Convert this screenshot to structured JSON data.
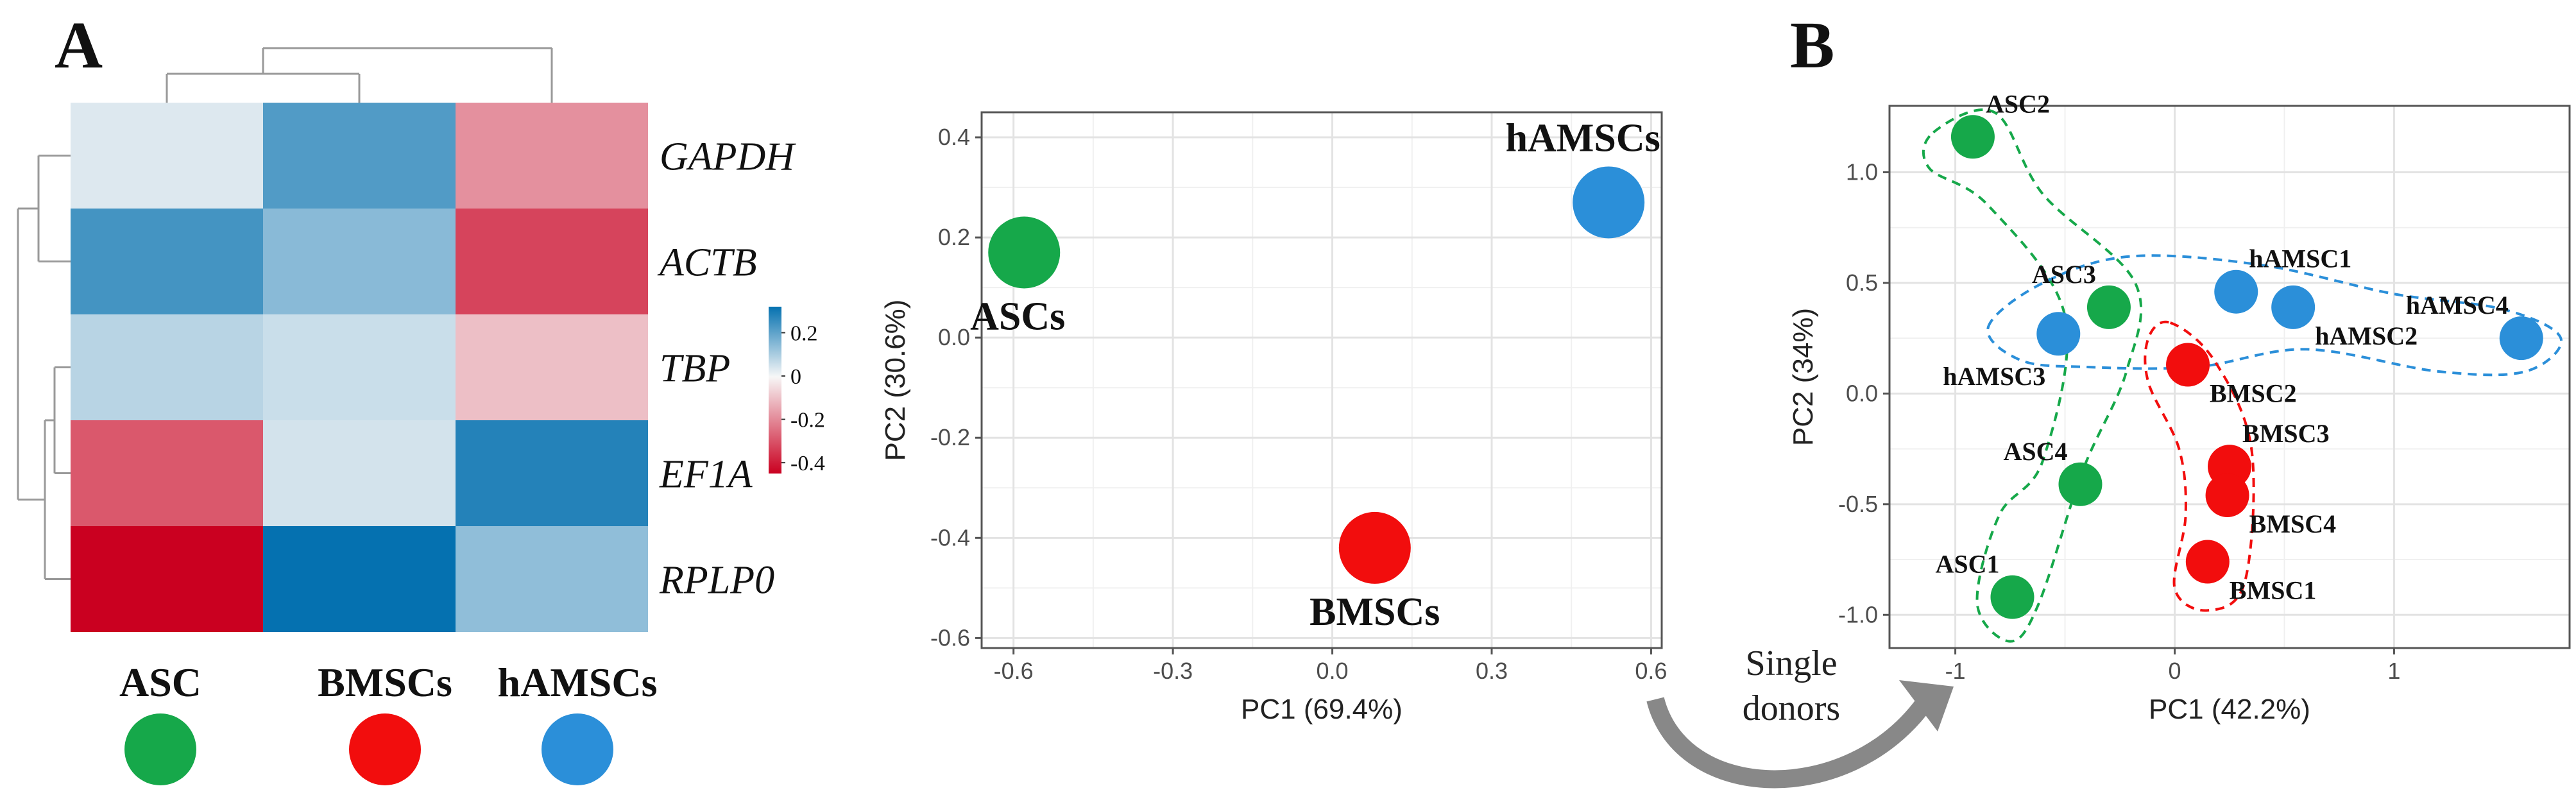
{
  "panel_labels": {
    "a": "A",
    "b": "B"
  },
  "transition": {
    "line1": "Single",
    "line2": "donors"
  },
  "legend_groups": [
    {
      "label": "ASC",
      "color": "#16a84a"
    },
    {
      "label": "BMSCs",
      "color": "#f20d0d"
    },
    {
      "label": "hAMSCs",
      "color": "#2b8fd9"
    }
  ],
  "colors": {
    "asc": "#16a84a",
    "bmsc": "#f20d0d",
    "hamsc": "#2b8fd9",
    "panel_bg": "#ffffff",
    "grid": "#e6e6e6",
    "scale_high": "#0571b0",
    "scale_mid": "#f7f7f7",
    "scale_low": "#ca0020"
  },
  "chart_data": [
    {
      "type": "heatmap",
      "columns": [
        "ASC",
        "BMSCs",
        "hAMSCs"
      ],
      "rows": [
        "GAPDH",
        "ACTB",
        "TBP",
        "EF1A",
        "RPLP0"
      ],
      "values": [
        [
          0.02,
          0.2,
          -0.15
        ],
        [
          0.22,
          0.12,
          -0.3
        ],
        [
          0.06,
          0.04,
          -0.07
        ],
        [
          -0.26,
          0.03,
          0.27
        ],
        [
          -0.45,
          0.32,
          0.11
        ]
      ],
      "colorbar": {
        "ticks": [
          0.2,
          0,
          -0.2,
          -0.4
        ],
        "tick_labels": [
          "0.2",
          "0",
          "-0.2",
          "-0.4"
        ],
        "range": [
          -0.45,
          0.32
        ]
      }
    },
    {
      "type": "scatter",
      "xlabel": "PC1 (69.4%)",
      "ylabel": "PC2 (30.6%)",
      "xlim": [
        -0.66,
        0.62
      ],
      "ylim": [
        -0.62,
        0.45
      ],
      "xticks": [
        -0.6,
        -0.3,
        0.0,
        0.3,
        0.6
      ],
      "xtick_labels": [
        "-0.6",
        "-0.3",
        "0.0",
        "0.3",
        "0.6"
      ],
      "yticks": [
        -0.6,
        -0.4,
        -0.2,
        0.0,
        0.2,
        0.4
      ],
      "ytick_labels": [
        "-0.6",
        "-0.4",
        "-0.2",
        "0.0",
        "0.2",
        "0.4"
      ],
      "grid": true,
      "points": [
        {
          "label": "ASCs",
          "x": -0.58,
          "y": 0.17,
          "group": "asc",
          "label_pos": "below"
        },
        {
          "label": "hAMSCs",
          "x": 0.52,
          "y": 0.27,
          "group": "hamsc",
          "label_pos": "above-left"
        },
        {
          "label": "BMSCs",
          "x": 0.08,
          "y": -0.42,
          "group": "bmsc",
          "label_pos": "below"
        }
      ]
    },
    {
      "type": "scatter",
      "xlabel": "PC1 (42.2%)",
      "ylabel": "PC2 (34%)",
      "xlim": [
        -1.3,
        1.8
      ],
      "ylim": [
        -1.15,
        1.3
      ],
      "xticks": [
        -1,
        0,
        1
      ],
      "xtick_labels": [
        "-1",
        "0",
        "1"
      ],
      "yticks": [
        -1.0,
        -0.5,
        0.0,
        0.5,
        1.0
      ],
      "ytick_labels": [
        "-1.0",
        "-0.5",
        "0.0",
        "0.5",
        "1.0"
      ],
      "grid": true,
      "points": [
        {
          "label": "ASC2",
          "x": -0.92,
          "y": 1.16,
          "group": "asc",
          "label_pos": "ne"
        },
        {
          "label": "ASC3",
          "x": -0.3,
          "y": 0.39,
          "group": "asc",
          "label_pos": "nw"
        },
        {
          "label": "ASC4",
          "x": -0.43,
          "y": -0.41,
          "group": "asc",
          "label_pos": "nw"
        },
        {
          "label": "ASC1",
          "x": -0.74,
          "y": -0.92,
          "group": "asc",
          "label_pos": "nw"
        },
        {
          "label": "hAMSC1",
          "x": 0.28,
          "y": 0.46,
          "group": "hamsc",
          "label_pos": "ne"
        },
        {
          "label": "hAMSC2",
          "x": 0.54,
          "y": 0.39,
          "group": "hamsc",
          "label_pos": "se"
        },
        {
          "label": "hAMSC3",
          "x": -0.53,
          "y": 0.27,
          "group": "hamsc",
          "label_pos": "sw"
        },
        {
          "label": "hAMSC4",
          "x": 1.58,
          "y": 0.25,
          "group": "hamsc",
          "label_pos": "nw"
        },
        {
          "label": "BMSC2",
          "x": 0.06,
          "y": 0.13,
          "group": "bmsc",
          "label_pos": "se"
        },
        {
          "label": "BMSC3",
          "x": 0.25,
          "y": -0.33,
          "group": "bmsc",
          "label_pos": "ne"
        },
        {
          "label": "BMSC4",
          "x": 0.24,
          "y": -0.46,
          "group": "bmsc",
          "label_pos": "se"
        },
        {
          "label": "BMSC1",
          "x": 0.15,
          "y": -0.76,
          "group": "bmsc",
          "label_pos": "se"
        }
      ],
      "hulls": [
        {
          "group": "asc",
          "points": [
            [
              -1.1,
              1.18
            ],
            [
              -0.82,
              1.27
            ],
            [
              -0.6,
              0.9
            ],
            [
              -0.18,
              0.5
            ],
            [
              -0.22,
              0.1
            ],
            [
              -0.42,
              -0.35
            ],
            [
              -0.62,
              -0.95
            ],
            [
              -0.75,
              -1.12
            ],
            [
              -0.9,
              -0.95
            ],
            [
              -0.8,
              -0.55
            ],
            [
              -0.6,
              -0.3
            ],
            [
              -0.5,
              0.35
            ],
            [
              -0.85,
              0.85
            ],
            [
              -1.12,
              1.02
            ]
          ]
        },
        {
          "group": "hamsc",
          "points": [
            [
              -0.85,
              0.3
            ],
            [
              -0.6,
              0.5
            ],
            [
              -0.2,
              0.62
            ],
            [
              0.4,
              0.58
            ],
            [
              1.0,
              0.45
            ],
            [
              1.5,
              0.38
            ],
            [
              1.76,
              0.25
            ],
            [
              1.6,
              0.1
            ],
            [
              1.2,
              0.1
            ],
            [
              0.6,
              0.2
            ],
            [
              0.1,
              0.12
            ],
            [
              -0.4,
              0.12
            ],
            [
              -0.7,
              0.15
            ]
          ]
        },
        {
          "group": "bmsc",
          "points": [
            [
              -0.02,
              0.32
            ],
            [
              0.18,
              0.15
            ],
            [
              0.35,
              -0.25
            ],
            [
              0.32,
              -0.85
            ],
            [
              0.15,
              -0.98
            ],
            [
              0.0,
              -0.88
            ],
            [
              0.05,
              -0.55
            ],
            [
              0.02,
              -0.25
            ],
            [
              -0.12,
              0.05
            ],
            [
              -0.12,
              0.25
            ]
          ]
        }
      ]
    }
  ]
}
